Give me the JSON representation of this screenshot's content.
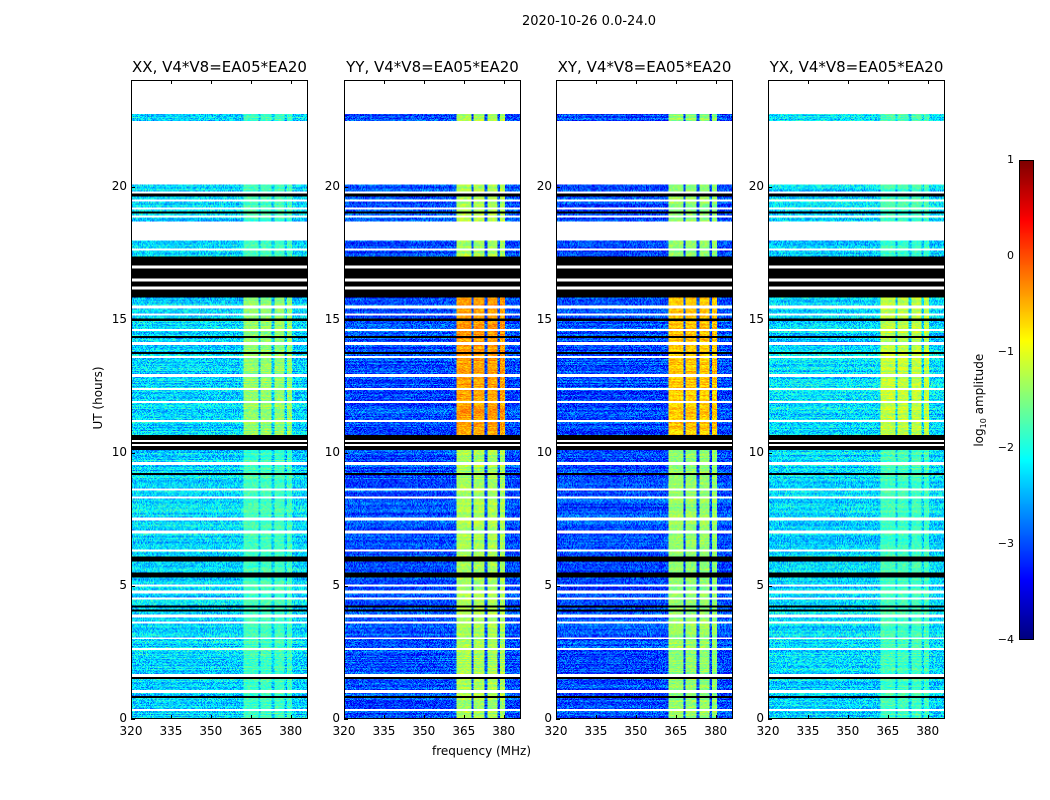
{
  "chart_data": {
    "type": "heatmap",
    "title": "2020-10-26 0.0-24.0",
    "xlabel": "frequency (MHz)",
    "ylabel": "UT (hours)",
    "xlim": [
      320,
      386.5
    ],
    "ylim": [
      0,
      24
    ],
    "xticks": [
      320,
      335,
      350,
      365,
      380
    ],
    "xtick_labels": [
      "320",
      "335",
      "350",
      "365",
      "380"
    ],
    "yticks": [
      0,
      5,
      10,
      15,
      20
    ],
    "ytick_labels": [
      "0",
      "5",
      "10",
      "15",
      "20"
    ],
    "panels": [
      {
        "title": "XX, V4*V8=EA05*EA20",
        "background_level": -2.3,
        "rfi_level": -1.8,
        "rfi_level_peak": -1.4
      },
      {
        "title": "YY, V4*V8=EA05*EA20",
        "background_level": -3.0,
        "rfi_level": -1.3,
        "rfi_level_peak": -0.4
      },
      {
        "title": "XY, V4*V8=EA05*EA20",
        "background_level": -3.0,
        "rfi_level": -1.4,
        "rfi_level_peak": -0.6
      },
      {
        "title": "YX, V4*V8=EA05*EA20",
        "background_level": -2.3,
        "rfi_level": -1.8,
        "rfi_level_peak": -1.2
      }
    ],
    "rfi_band_mhz": [
      362.5,
      381
    ],
    "rfi_gaps_mhz": [
      368.5,
      373.5,
      378.3
    ],
    "rfi_peak_hours": [
      10.6,
      15.85
    ],
    "segments": [
      {
        "from": 0,
        "to": 10.1,
        "state": "data"
      },
      {
        "from": 10.1,
        "to": 10.65,
        "state": "flagged"
      },
      {
        "from": 10.65,
        "to": 15.85,
        "state": "data"
      },
      {
        "from": 15.85,
        "to": 17.4,
        "state": "flagged"
      },
      {
        "from": 17.4,
        "to": 18.0,
        "state": "data"
      },
      {
        "from": 18.0,
        "to": 18.7,
        "state": "missing"
      },
      {
        "from": 18.7,
        "to": 20.1,
        "state": "data"
      },
      {
        "from": 20.1,
        "to": 22.5,
        "state": "missing"
      },
      {
        "from": 22.5,
        "to": 22.75,
        "state": "data"
      },
      {
        "from": 22.75,
        "to": 24,
        "state": "missing"
      }
    ],
    "white_lines_h": [
      0.3,
      1.0,
      1.6,
      2.6,
      3.0,
      3.6,
      3.85,
      4.5,
      4.75,
      5.0,
      6.3,
      7.0,
      7.5,
      8.3,
      8.6,
      9.6,
      10.3,
      10.45,
      11.2,
      11.9,
      12.4,
      12.9,
      13.6,
      14.1,
      14.6,
      15.2,
      15.5,
      16.2,
      16.5,
      17.0,
      17.65,
      18.9,
      19.2,
      19.5,
      19.8
    ],
    "black_lines_h": [
      0.8,
      1.5,
      4.05,
      4.2,
      5.35,
      5.45,
      5.95,
      6.05,
      9.2,
      13.75,
      14.35,
      15.0,
      19.05,
      19.7
    ],
    "colorbar": {
      "label_prefix": "log",
      "label_sub": "10",
      "label_suffix": " amplitude",
      "range": [
        -4,
        1
      ],
      "ticks": [
        1,
        0,
        -1,
        -2,
        -3,
        -4
      ],
      "tick_labels": [
        "1",
        "0",
        "−1",
        "−2",
        "−3",
        "−4"
      ]
    }
  }
}
